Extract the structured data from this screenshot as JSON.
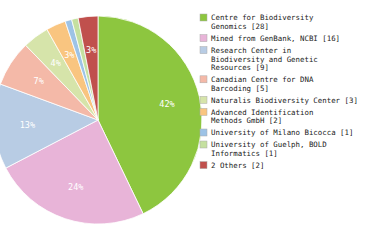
{
  "chart_data": {
    "type": "pie",
    "categories": [
      "Centre for Biodiversity\nGenomics [28]",
      "Mined from GenBank, NCBI [16]",
      "Research Center in\nBiodiversity and Genetic\nResources [9]",
      "Canadian Centre for DNA\nBarcoding [5]",
      "Naturalis Biodiversity Center [3]",
      "Advanced Identification\nMethods GmbH [2]",
      "University of Milano Bicocca [1]",
      "University of Guelph, BOLD\nInformatics [1]",
      "2 Others [2]"
    ],
    "values": [
      42,
      24,
      13,
      7,
      4,
      3,
      1,
      1,
      3
    ],
    "value_labels": [
      "42%",
      "24%",
      "13%",
      "7%",
      "4%",
      "3%",
      null,
      null,
      "3%"
    ],
    "colors": [
      "#8dc63f",
      "#e8b4d8",
      "#b8cce4",
      "#f4b9a8",
      "#d6e4aa",
      "#f9c580",
      "#9dc3e6",
      "#c5e0a0",
      "#c0504d"
    ],
    "data_labels": true
  }
}
